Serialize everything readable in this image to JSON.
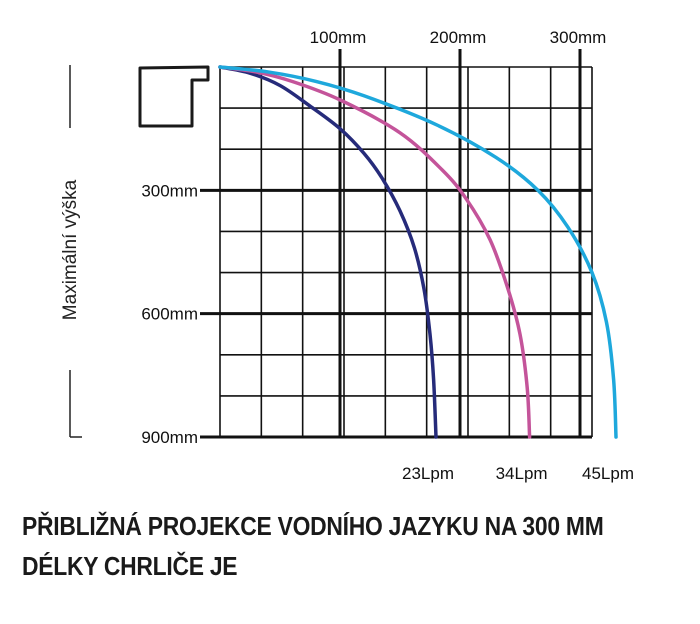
{
  "chart_data": {
    "type": "line",
    "x_axis": {
      "unit": "mm",
      "position": "top",
      "tick_values": [
        100,
        200,
        300
      ],
      "tick_labels": [
        "100mm",
        "200mm",
        "300mm"
      ]
    },
    "y_axis": {
      "unit": "mm",
      "direction": "downward",
      "tick_values": [
        300,
        600,
        900
      ],
      "tick_labels": [
        "300mm",
        "600mm",
        "900mm"
      ],
      "label": "Maximální výška"
    },
    "grid": true,
    "legend": "curve end labels at bottom",
    "series": [
      {
        "name": "23Lpm",
        "color": "#262b7a",
        "points": [
          [
            0,
            0
          ],
          [
            25,
            15
          ],
          [
            50,
            45
          ],
          [
            75,
            95
          ],
          [
            100,
            150
          ],
          [
            120,
            210
          ],
          [
            135,
            270
          ],
          [
            150,
            350
          ],
          [
            162,
            440
          ],
          [
            170,
            540
          ],
          [
            175,
            650
          ],
          [
            178,
            760
          ],
          [
            180,
            900
          ]
        ]
      },
      {
        "name": "34Lpm",
        "color": "#c4549a",
        "points": [
          [
            0,
            0
          ],
          [
            30,
            12
          ],
          [
            60,
            35
          ],
          [
            100,
            80
          ],
          [
            150,
            160
          ],
          [
            185,
            250
          ],
          [
            205,
            320
          ],
          [
            225,
            420
          ],
          [
            240,
            540
          ],
          [
            250,
            650
          ],
          [
            256,
            780
          ],
          [
            258,
            900
          ]
        ]
      },
      {
        "name": "45Lpm",
        "color": "#1ea8dc",
        "points": [
          [
            0,
            0
          ],
          [
            40,
            12
          ],
          [
            80,
            35
          ],
          [
            120,
            70
          ],
          [
            180,
            140
          ],
          [
            230,
            220
          ],
          [
            265,
            300
          ],
          [
            290,
            390
          ],
          [
            310,
            500
          ],
          [
            322,
            620
          ],
          [
            328,
            760
          ],
          [
            330,
            900
          ]
        ]
      }
    ]
  },
  "caption": {
    "line1": "PŘIBLIŽNÁ PROJEKCE VODNÍHO JAZYKU NA 300 MM",
    "line2": "DÉLKY CHRLIČE JE"
  }
}
